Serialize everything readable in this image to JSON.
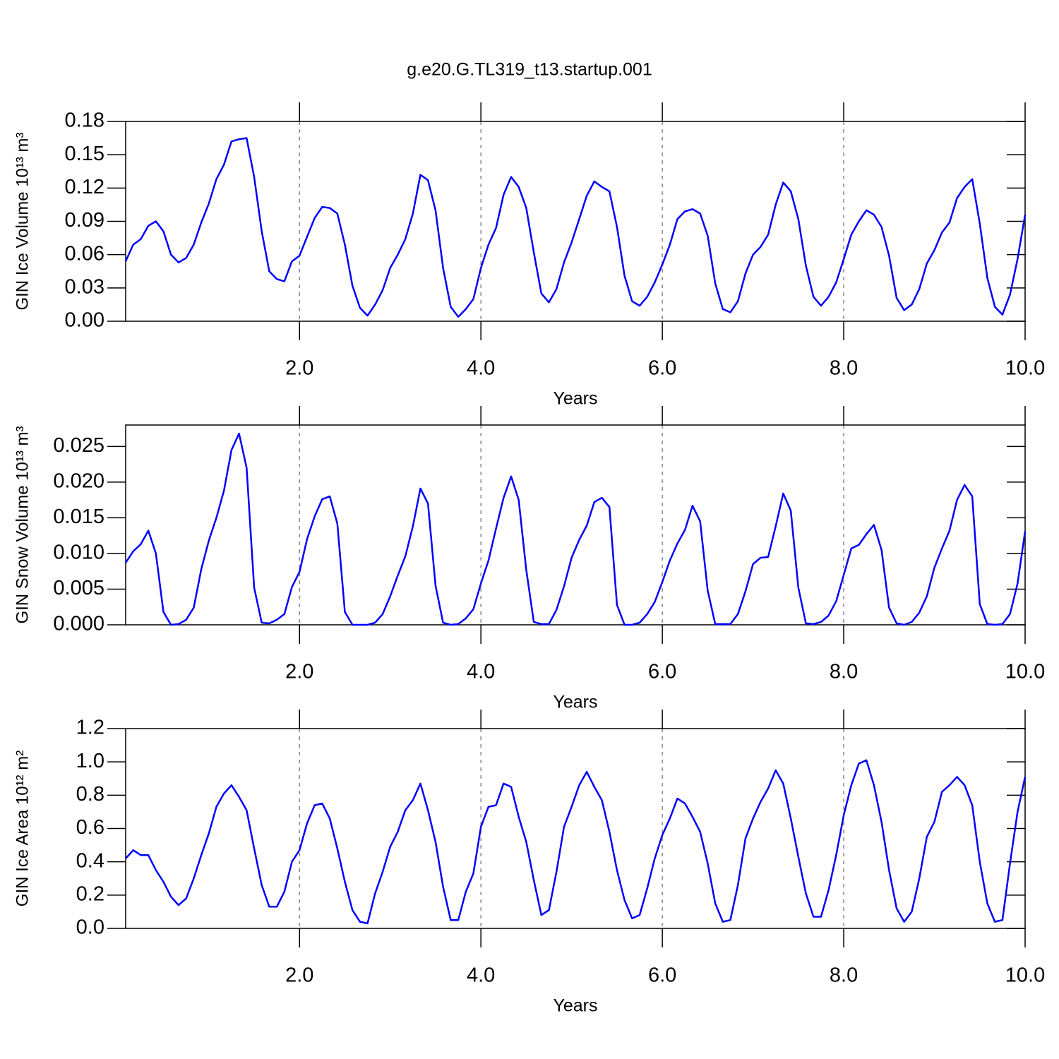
{
  "chart_data": [
    {
      "type": "line",
      "title": "g.e20.G.TL319_t13.startup.001",
      "ylabel": "GIN Ice Volume 10¹³ m³",
      "xlabel": "Years",
      "color": "#0000ff",
      "grid": true,
      "xlim": [
        0.0833,
        10
      ],
      "xticks": [
        {
          "value": 2,
          "label": "2.0"
        },
        {
          "value": 4,
          "label": "4.0"
        },
        {
          "value": 6,
          "label": "6.0"
        },
        {
          "value": 8,
          "label": "8.0"
        },
        {
          "value": 10,
          "label": "10.0"
        }
      ],
      "ylim": [
        0,
        0.18
      ],
      "yticks": [
        {
          "value": 0,
          "label": "0.00"
        },
        0.03,
        0.06,
        0.09,
        0.12,
        0.15,
        0.18
      ],
      "x": [
        0.0833,
        0.1667,
        0.25,
        0.3333,
        0.4167,
        0.5,
        0.5833,
        0.6667,
        0.75,
        0.8333,
        0.9167,
        1,
        1.0833,
        1.1667,
        1.25,
        1.3333,
        1.4167,
        1.5,
        1.5833,
        1.6667,
        1.75,
        1.8333,
        1.9167,
        2,
        2.0833,
        2.1667,
        2.25,
        2.3333,
        2.4167,
        2.5,
        2.5833,
        2.6667,
        2.75,
        2.8333,
        2.9167,
        3,
        3.0833,
        3.1667,
        3.25,
        3.3333,
        3.4167,
        3.5,
        3.5833,
        3.6667,
        3.75,
        3.8333,
        3.9167,
        4,
        4.0833,
        4.1667,
        4.25,
        4.3333,
        4.4167,
        4.5,
        4.5833,
        4.6667,
        4.75,
        4.8333,
        4.9167,
        5,
        5.0833,
        5.1667,
        5.25,
        5.3333,
        5.4167,
        5.5,
        5.5833,
        5.6667,
        5.75,
        5.8333,
        5.9167,
        6,
        6.0833,
        6.1667,
        6.25,
        6.3333,
        6.4167,
        6.5,
        6.5833,
        6.6667,
        6.75,
        6.8333,
        6.9167,
        7,
        7.0833,
        7.1667,
        7.25,
        7.3333,
        7.4167,
        7.5,
        7.5833,
        7.6667,
        7.75,
        7.8333,
        7.9167,
        8,
        8.0833,
        8.1667,
        8.25,
        8.3333,
        8.4167,
        8.5,
        8.5833,
        8.6667,
        8.75,
        8.8333,
        8.9167,
        9,
        9.0833,
        9.1667,
        9.25,
        9.3333,
        9.4167,
        9.5,
        9.5833,
        9.6667,
        9.75,
        9.8333,
        9.9167,
        10
      ],
      "values": [
        0.054,
        0.069,
        0.074,
        0.086,
        0.09,
        0.081,
        0.06,
        0.053,
        0.057,
        0.069,
        0.089,
        0.106,
        0.128,
        0.141,
        0.162,
        0.164,
        0.165,
        0.13,
        0.081,
        0.045,
        0.038,
        0.036,
        0.054,
        0.059,
        0.076,
        0.093,
        0.103,
        0.102,
        0.097,
        0.069,
        0.032,
        0.012,
        0.005,
        0.015,
        0.028,
        0.048,
        0.06,
        0.074,
        0.097,
        0.132,
        0.127,
        0.1,
        0.048,
        0.013,
        0.004,
        0.011,
        0.02,
        0.048,
        0.069,
        0.084,
        0.114,
        0.13,
        0.121,
        0.102,
        0.062,
        0.025,
        0.017,
        0.029,
        0.053,
        0.071,
        0.092,
        0.113,
        0.126,
        0.121,
        0.117,
        0.085,
        0.041,
        0.018,
        0.014,
        0.022,
        0.035,
        0.051,
        0.069,
        0.092,
        0.099,
        0.101,
        0.097,
        0.077,
        0.034,
        0.011,
        0.008,
        0.018,
        0.043,
        0.06,
        0.067,
        0.078,
        0.105,
        0.125,
        0.117,
        0.092,
        0.05,
        0.022,
        0.014,
        0.022,
        0.035,
        0.056,
        0.078,
        0.09,
        0.1,
        0.096,
        0.085,
        0.059,
        0.021,
        0.01,
        0.015,
        0.029,
        0.052,
        0.064,
        0.08,
        0.089,
        0.111,
        0.121,
        0.128,
        0.088,
        0.039,
        0.013,
        0.006,
        0.024,
        0.056,
        0.096
      ]
    },
    {
      "type": "line",
      "ylabel": "GIN Snow Volume 10¹³ m³",
      "xlabel": "Years",
      "color": "#0000ff",
      "grid": true,
      "xlim": [
        0.0833,
        10
      ],
      "xticks": [
        {
          "value": 2,
          "label": "2.0"
        },
        {
          "value": 4,
          "label": "4.0"
        },
        {
          "value": 6,
          "label": "6.0"
        },
        {
          "value": 8,
          "label": "8.0"
        },
        {
          "value": 10,
          "label": "10.0"
        }
      ],
      "ylim": [
        0,
        0.028
      ],
      "yticks": [
        {
          "value": 0,
          "label": "0.000"
        },
        0.005,
        {
          "value": 0.01,
          "label": "0.010"
        },
        0.015,
        {
          "value": 0.02,
          "label": "0.020"
        },
        0.025
      ],
      "x": [
        0.0833,
        0.1667,
        0.25,
        0.3333,
        0.4167,
        0.5,
        0.5833,
        0.6667,
        0.75,
        0.8333,
        0.9167,
        1,
        1.0833,
        1.1667,
        1.25,
        1.3333,
        1.4167,
        1.5,
        1.5833,
        1.6667,
        1.75,
        1.8333,
        1.9167,
        2,
        2.0833,
        2.1667,
        2.25,
        2.3333,
        2.4167,
        2.5,
        2.5833,
        2.6667,
        2.75,
        2.8333,
        2.9167,
        3,
        3.0833,
        3.1667,
        3.25,
        3.3333,
        3.4167,
        3.5,
        3.5833,
        3.6667,
        3.75,
        3.8333,
        3.9167,
        4,
        4.0833,
        4.1667,
        4.25,
        4.3333,
        4.4167,
        4.5,
        4.5833,
        4.6667,
        4.75,
        4.8333,
        4.9167,
        5,
        5.0833,
        5.1667,
        5.25,
        5.3333,
        5.4167,
        5.5,
        5.5833,
        5.6667,
        5.75,
        5.8333,
        5.9167,
        6,
        6.0833,
        6.1667,
        6.25,
        6.3333,
        6.4167,
        6.5,
        6.5833,
        6.6667,
        6.75,
        6.8333,
        6.9167,
        7,
        7.0833,
        7.1667,
        7.25,
        7.3333,
        7.4167,
        7.5,
        7.5833,
        7.6667,
        7.75,
        7.8333,
        7.9167,
        8,
        8.0833,
        8.1667,
        8.25,
        8.3333,
        8.4167,
        8.5,
        8.5833,
        8.6667,
        8.75,
        8.8333,
        8.9167,
        9,
        9.0833,
        9.1667,
        9.25,
        9.3333,
        9.4167,
        9.5,
        9.5833,
        9.6667,
        9.75,
        9.8333,
        9.9167,
        10
      ],
      "values": [
        0.0087,
        0.0103,
        0.0113,
        0.0132,
        0.01,
        0.0018,
        0.0,
        0.0001,
        0.0007,
        0.0024,
        0.0078,
        0.0118,
        0.015,
        0.0188,
        0.0245,
        0.0268,
        0.022,
        0.0052,
        0.0003,
        0.0002,
        0.0007,
        0.0015,
        0.0053,
        0.0074,
        0.012,
        0.0152,
        0.0176,
        0.018,
        0.0142,
        0.0018,
        0.0,
        0.0,
        0.0,
        0.0003,
        0.0015,
        0.004,
        0.0069,
        0.0096,
        0.0138,
        0.0191,
        0.017,
        0.0055,
        0.0003,
        0.0,
        0.0001,
        0.0009,
        0.0022,
        0.0058,
        0.009,
        0.0135,
        0.0178,
        0.0208,
        0.0175,
        0.0077,
        0.0004,
        0.0001,
        0.0001,
        0.0021,
        0.0054,
        0.0094,
        0.0119,
        0.0139,
        0.0172,
        0.0178,
        0.0165,
        0.0028,
        0.0,
        0.0,
        0.0003,
        0.0015,
        0.0032,
        0.006,
        0.009,
        0.0114,
        0.0133,
        0.0167,
        0.0145,
        0.0048,
        0.0001,
        0.0001,
        0.0001,
        0.0015,
        0.0047,
        0.0085,
        0.0094,
        0.0095,
        0.0138,
        0.0184,
        0.016,
        0.0052,
        0.0002,
        0.0001,
        0.0004,
        0.0013,
        0.0033,
        0.007,
        0.0107,
        0.0112,
        0.0127,
        0.014,
        0.0105,
        0.0024,
        0.0002,
        0.0,
        0.0004,
        0.0017,
        0.004,
        0.008,
        0.0107,
        0.0132,
        0.0175,
        0.0196,
        0.018,
        0.0029,
        0.0001,
        0.0,
        0.0001,
        0.0015,
        0.0058,
        0.0131
      ]
    },
    {
      "type": "line",
      "ylabel": "GIN Ice Area 10¹² m²",
      "xlabel": "Years",
      "color": "#0000ff",
      "grid": true,
      "xlim": [
        0.0833,
        10
      ],
      "xticks": [
        {
          "value": 2,
          "label": "2.0"
        },
        {
          "value": 4,
          "label": "4.0"
        },
        {
          "value": 6,
          "label": "6.0"
        },
        {
          "value": 8,
          "label": "8.0"
        },
        {
          "value": 10,
          "label": "10.0"
        }
      ],
      "ylim": [
        0,
        1.2
      ],
      "yticks": [
        {
          "value": 0,
          "label": "0.0"
        },
        0.2,
        0.4,
        0.6,
        0.8,
        {
          "value": 1,
          "label": "1.0"
        },
        1.2
      ],
      "x": [
        0.0833,
        0.1667,
        0.25,
        0.3333,
        0.4167,
        0.5,
        0.5833,
        0.6667,
        0.75,
        0.8333,
        0.9167,
        1,
        1.0833,
        1.1667,
        1.25,
        1.3333,
        1.4167,
        1.5,
        1.5833,
        1.6667,
        1.75,
        1.8333,
        1.9167,
        2,
        2.0833,
        2.1667,
        2.25,
        2.3333,
        2.4167,
        2.5,
        2.5833,
        2.6667,
        2.75,
        2.8333,
        2.9167,
        3,
        3.0833,
        3.1667,
        3.25,
        3.3333,
        3.4167,
        3.5,
        3.5833,
        3.6667,
        3.75,
        3.8333,
        3.9167,
        4,
        4.0833,
        4.1667,
        4.25,
        4.3333,
        4.4167,
        4.5,
        4.5833,
        4.6667,
        4.75,
        4.8333,
        4.9167,
        5,
        5.0833,
        5.1667,
        5.25,
        5.3333,
        5.4167,
        5.5,
        5.5833,
        5.6667,
        5.75,
        5.8333,
        5.9167,
        6,
        6.0833,
        6.1667,
        6.25,
        6.3333,
        6.4167,
        6.5,
        6.5833,
        6.6667,
        6.75,
        6.8333,
        6.9167,
        7,
        7.0833,
        7.1667,
        7.25,
        7.3333,
        7.4167,
        7.5,
        7.5833,
        7.6667,
        7.75,
        7.8333,
        7.9167,
        8,
        8.0833,
        8.1667,
        8.25,
        8.3333,
        8.4167,
        8.5,
        8.5833,
        8.6667,
        8.75,
        8.8333,
        8.9167,
        9,
        9.0833,
        9.1667,
        9.25,
        9.3333,
        9.4167,
        9.5,
        9.5833,
        9.6667,
        9.75,
        9.8333,
        9.9167,
        10
      ],
      "values": [
        0.42,
        0.47,
        0.44,
        0.44,
        0.35,
        0.28,
        0.19,
        0.14,
        0.18,
        0.3,
        0.44,
        0.57,
        0.73,
        0.81,
        0.86,
        0.79,
        0.71,
        0.48,
        0.26,
        0.13,
        0.13,
        0.22,
        0.4,
        0.47,
        0.63,
        0.74,
        0.75,
        0.66,
        0.48,
        0.28,
        0.11,
        0.04,
        0.03,
        0.21,
        0.34,
        0.49,
        0.58,
        0.71,
        0.77,
        0.87,
        0.71,
        0.52,
        0.25,
        0.05,
        0.05,
        0.22,
        0.33,
        0.61,
        0.73,
        0.74,
        0.87,
        0.85,
        0.67,
        0.52,
        0.29,
        0.08,
        0.11,
        0.34,
        0.61,
        0.73,
        0.86,
        0.94,
        0.85,
        0.77,
        0.58,
        0.35,
        0.17,
        0.06,
        0.08,
        0.24,
        0.42,
        0.56,
        0.66,
        0.78,
        0.75,
        0.67,
        0.58,
        0.39,
        0.15,
        0.04,
        0.05,
        0.26,
        0.54,
        0.66,
        0.76,
        0.84,
        0.95,
        0.87,
        0.66,
        0.43,
        0.21,
        0.07,
        0.07,
        0.23,
        0.44,
        0.68,
        0.86,
        0.99,
        1.01,
        0.86,
        0.64,
        0.35,
        0.12,
        0.04,
        0.1,
        0.3,
        0.55,
        0.64,
        0.82,
        0.86,
        0.91,
        0.86,
        0.74,
        0.4,
        0.15,
        0.04,
        0.05,
        0.39,
        0.7,
        0.91
      ]
    }
  ]
}
